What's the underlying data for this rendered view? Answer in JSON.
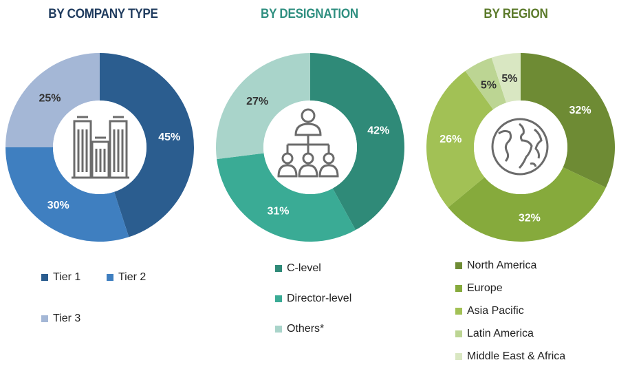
{
  "chart_data": [
    {
      "type": "pie",
      "title": "BY COMPANY TYPE",
      "title_color": "#1f3b5e",
      "labels": [
        "Tier 1",
        "Tier 2",
        "Tier 3"
      ],
      "values": [
        45,
        30,
        25
      ],
      "value_labels": [
        "45%",
        "30%",
        "25%"
      ],
      "colors": [
        "#2b5d8f",
        "#3f7fc0",
        "#a4b7d6"
      ],
      "label_colors": [
        "#ffffff",
        "#ffffff",
        "#333333"
      ],
      "center_icon": "buildings-icon"
    },
    {
      "type": "pie",
      "title": "BY DESIGNATION",
      "title_color": "#2f8f80",
      "labels": [
        "C-level",
        "Director-level",
        "Others*"
      ],
      "values": [
        42,
        31,
        27
      ],
      "value_labels": [
        "42%",
        "31%",
        "27%"
      ],
      "colors": [
        "#2f8a78",
        "#3aab95",
        "#a9d4ca"
      ],
      "label_colors": [
        "#ffffff",
        "#ffffff",
        "#333333"
      ],
      "center_icon": "org-chart-icon"
    },
    {
      "type": "pie",
      "title": "BY REGION",
      "title_color": "#5b7a2a",
      "labels": [
        "North America",
        "Europe",
        "Asia Pacific",
        "Latin America",
        "Middle East & Africa"
      ],
      "values": [
        32,
        32,
        26,
        5,
        5
      ],
      "value_labels": [
        "32%",
        "32%",
        "26%",
        "5%",
        "5%"
      ],
      "colors": [
        "#6e8b34",
        "#86aa3c",
        "#a2c155",
        "#bcd593",
        "#d9e7c2"
      ],
      "label_colors": [
        "#ffffff",
        "#ffffff",
        "#ffffff",
        "#333333",
        "#333333"
      ],
      "center_icon": "globe-icon"
    }
  ]
}
